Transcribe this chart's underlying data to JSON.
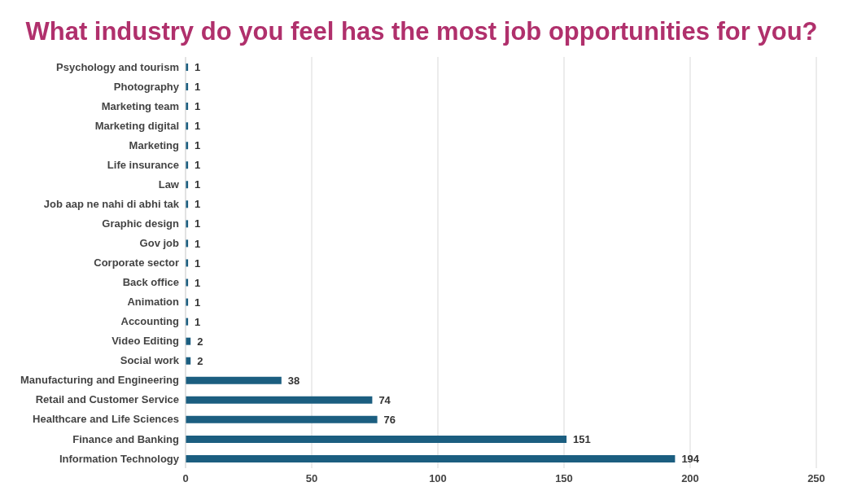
{
  "chart_data": {
    "type": "bar",
    "orientation": "horizontal",
    "title": "What industry do you feel has the most job opportunities for you?",
    "categories": [
      "Psychology and tourism",
      "Photography",
      "Marketing team",
      "Marketing digital",
      "Marketing",
      "Life insurance",
      "Law",
      "Job aap ne nahi di abhi tak",
      "Graphic design",
      "Gov job",
      "Corporate sector",
      "Back office",
      "Animation",
      "Accounting",
      "Video Editing",
      "Social work",
      "Manufacturing and Engineering",
      "Retail and Customer Service",
      "Healthcare and Life Sciences",
      "Finance and Banking",
      "Information Technology"
    ],
    "values": [
      1,
      1,
      1,
      1,
      1,
      1,
      1,
      1,
      1,
      1,
      1,
      1,
      1,
      1,
      2,
      2,
      38,
      74,
      76,
      151,
      194
    ],
    "color": "#1b5e80",
    "xlim": [
      0,
      250
    ],
    "xticks": [
      0,
      50,
      100,
      150,
      200,
      250
    ],
    "grid": "x",
    "data_labels": true,
    "legend": false
  }
}
